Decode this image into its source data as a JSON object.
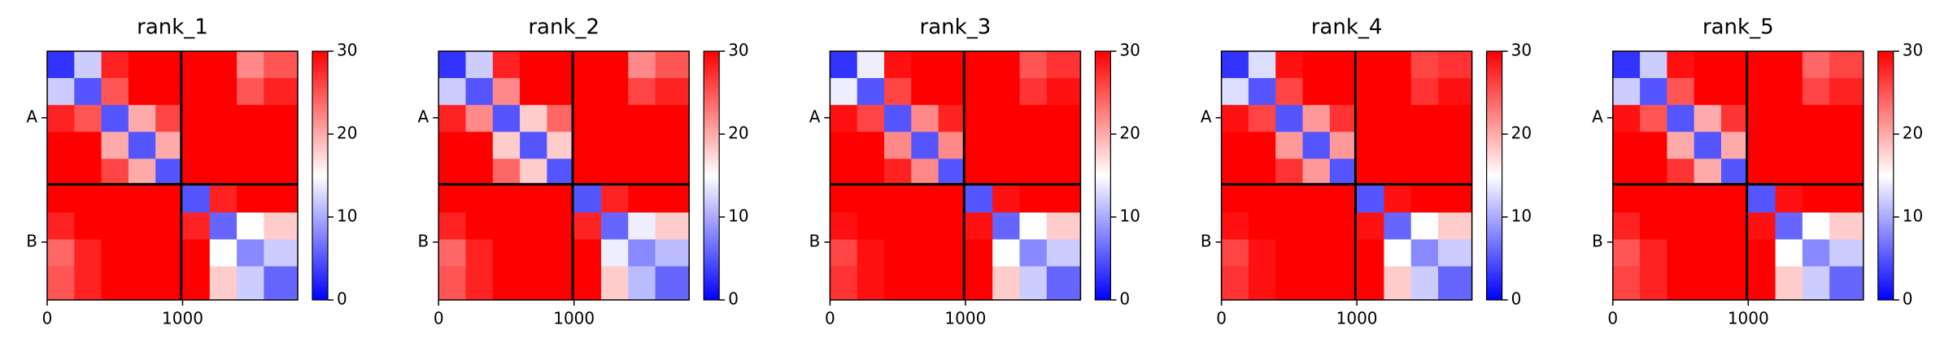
{
  "chart_data": [
    {
      "type": "heatmap",
      "title": "rank_1",
      "bins": [
        0,
        200,
        400,
        600,
        800,
        990,
        1200,
        1400,
        1600,
        1850
      ],
      "z": [
        [
          3,
          12,
          28,
          30,
          30,
          30,
          30,
          22,
          25
        ],
        [
          12,
          5,
          25,
          30,
          30,
          30,
          30,
          25,
          28
        ],
        [
          28,
          25,
          5,
          20,
          26,
          30,
          30,
          30,
          30
        ],
        [
          30,
          30,
          20,
          5,
          20,
          30,
          30,
          30,
          30
        ],
        [
          30,
          30,
          26,
          20,
          5,
          30,
          30,
          30,
          30
        ],
        [
          30,
          30,
          30,
          30,
          30,
          5,
          28,
          30,
          30
        ],
        [
          28,
          30,
          30,
          30,
          30,
          28,
          6,
          15,
          18
        ],
        [
          24,
          28,
          30,
          30,
          30,
          30,
          15,
          8,
          12
        ],
        [
          25,
          28,
          30,
          30,
          30,
          30,
          18,
          12,
          6
        ]
      ],
      "xlim": [
        0,
        1850
      ],
      "ylim": [
        1850,
        0
      ],
      "xticks": [
        0,
        1000
      ],
      "yticks": [
        {
          "value": 495,
          "label": "A"
        },
        {
          "value": 1420,
          "label": "B"
        }
      ],
      "chain_boundaries": [
        990
      ],
      "colormap": "bwr",
      "clim": [
        0,
        30
      ],
      "cticks": [
        0,
        10,
        20,
        30
      ]
    },
    {
      "type": "heatmap",
      "title": "rank_2",
      "bins": [
        0,
        200,
        400,
        600,
        800,
        990,
        1200,
        1400,
        1600,
        1850
      ],
      "z": [
        [
          3,
          12,
          28,
          30,
          30,
          30,
          30,
          22,
          25
        ],
        [
          12,
          5,
          22,
          30,
          30,
          30,
          30,
          26,
          28
        ],
        [
          28,
          22,
          5,
          18,
          24,
          30,
          30,
          30,
          30
        ],
        [
          30,
          30,
          18,
          5,
          18,
          30,
          30,
          30,
          30
        ],
        [
          30,
          30,
          24,
          18,
          5,
          30,
          30,
          30,
          30
        ],
        [
          30,
          30,
          30,
          30,
          30,
          5,
          28,
          30,
          30
        ],
        [
          28,
          30,
          30,
          30,
          30,
          28,
          6,
          14,
          18
        ],
        [
          24,
          28,
          30,
          30,
          30,
          30,
          14,
          8,
          11
        ],
        [
          25,
          28,
          30,
          30,
          30,
          30,
          18,
          11,
          6
        ]
      ],
      "xlim": [
        0,
        1850
      ],
      "ylim": [
        1850,
        0
      ],
      "xticks": [
        0,
        1000
      ],
      "yticks": [
        {
          "value": 495,
          "label": "A"
        },
        {
          "value": 1420,
          "label": "B"
        }
      ],
      "chain_boundaries": [
        990
      ],
      "colormap": "bwr",
      "clim": [
        0,
        30
      ],
      "cticks": [
        0,
        10,
        20,
        30
      ]
    },
    {
      "type": "heatmap",
      "title": "rank_3",
      "bins": [
        0,
        200,
        400,
        600,
        800,
        990,
        1200,
        1400,
        1600,
        1850
      ],
      "z": [
        [
          3,
          14,
          29,
          30,
          30,
          30,
          30,
          25,
          27
        ],
        [
          14,
          5,
          26,
          30,
          30,
          30,
          30,
          27,
          29
        ],
        [
          29,
          26,
          5,
          22,
          28,
          30,
          30,
          30,
          30
        ],
        [
          30,
          30,
          22,
          5,
          22,
          30,
          30,
          30,
          30
        ],
        [
          30,
          30,
          28,
          22,
          5,
          30,
          30,
          30,
          30
        ],
        [
          30,
          30,
          30,
          30,
          30,
          5,
          29,
          30,
          30
        ],
        [
          29,
          30,
          30,
          30,
          30,
          29,
          6,
          15,
          18
        ],
        [
          26,
          29,
          30,
          30,
          30,
          30,
          15,
          8,
          12
        ],
        [
          27,
          29,
          30,
          30,
          30,
          30,
          18,
          12,
          6
        ]
      ],
      "xlim": [
        0,
        1850
      ],
      "ylim": [
        1850,
        0
      ],
      "xticks": [
        0,
        1000
      ],
      "yticks": [
        {
          "value": 495,
          "label": "A"
        },
        {
          "value": 1420,
          "label": "B"
        }
      ],
      "chain_boundaries": [
        990
      ],
      "colormap": "bwr",
      "clim": [
        0,
        30
      ],
      "cticks": [
        0,
        10,
        20,
        30
      ]
    },
    {
      "type": "heatmap",
      "title": "rank_4",
      "bins": [
        0,
        200,
        400,
        600,
        800,
        990,
        1200,
        1400,
        1600,
        1850
      ],
      "z": [
        [
          3,
          13,
          29,
          30,
          30,
          30,
          30,
          26,
          27
        ],
        [
          13,
          5,
          26,
          30,
          30,
          30,
          30,
          27,
          29
        ],
        [
          29,
          26,
          5,
          21,
          27,
          30,
          30,
          30,
          30
        ],
        [
          30,
          30,
          21,
          5,
          21,
          30,
          30,
          30,
          30
        ],
        [
          30,
          30,
          27,
          21,
          5,
          30,
          30,
          30,
          30
        ],
        [
          30,
          30,
          30,
          30,
          30,
          5,
          29,
          30,
          30
        ],
        [
          29,
          30,
          30,
          30,
          30,
          29,
          6,
          15,
          18
        ],
        [
          26,
          29,
          30,
          30,
          30,
          30,
          15,
          8,
          12
        ],
        [
          27,
          29,
          30,
          30,
          30,
          30,
          18,
          12,
          6
        ]
      ],
      "xlim": [
        0,
        1850
      ],
      "ylim": [
        1850,
        0
      ],
      "xticks": [
        0,
        1000
      ],
      "yticks": [
        {
          "value": 495,
          "label": "A"
        },
        {
          "value": 1420,
          "label": "B"
        }
      ],
      "chain_boundaries": [
        990
      ],
      "colormap": "bwr",
      "clim": [
        0,
        30
      ],
      "cticks": [
        0,
        10,
        20,
        30
      ]
    },
    {
      "type": "heatmap",
      "title": "rank_5",
      "bins": [
        0,
        200,
        400,
        600,
        800,
        990,
        1200,
        1400,
        1600,
        1850
      ],
      "z": [
        [
          3,
          12,
          29,
          30,
          30,
          30,
          30,
          24,
          26
        ],
        [
          12,
          5,
          25,
          30,
          30,
          30,
          30,
          26,
          28
        ],
        [
          29,
          25,
          5,
          20,
          27,
          30,
          30,
          30,
          30
        ],
        [
          30,
          30,
          20,
          5,
          20,
          30,
          30,
          30,
          30
        ],
        [
          30,
          30,
          27,
          20,
          5,
          30,
          30,
          30,
          30
        ],
        [
          30,
          30,
          30,
          30,
          30,
          5,
          29,
          30,
          30
        ],
        [
          28,
          30,
          30,
          30,
          30,
          29,
          6,
          15,
          18
        ],
        [
          25,
          28,
          30,
          30,
          30,
          30,
          15,
          8,
          12
        ],
        [
          26,
          28,
          30,
          30,
          30,
          30,
          18,
          12,
          6
        ]
      ],
      "xlim": [
        0,
        1850
      ],
      "ylim": [
        1850,
        0
      ],
      "xticks": [
        0,
        1000
      ],
      "yticks": [
        {
          "value": 495,
          "label": "A"
        },
        {
          "value": 1420,
          "label": "B"
        }
      ],
      "chain_boundaries": [
        990
      ],
      "colormap": "bwr",
      "clim": [
        0,
        30
      ],
      "cticks": [
        0,
        10,
        20,
        30
      ]
    }
  ]
}
